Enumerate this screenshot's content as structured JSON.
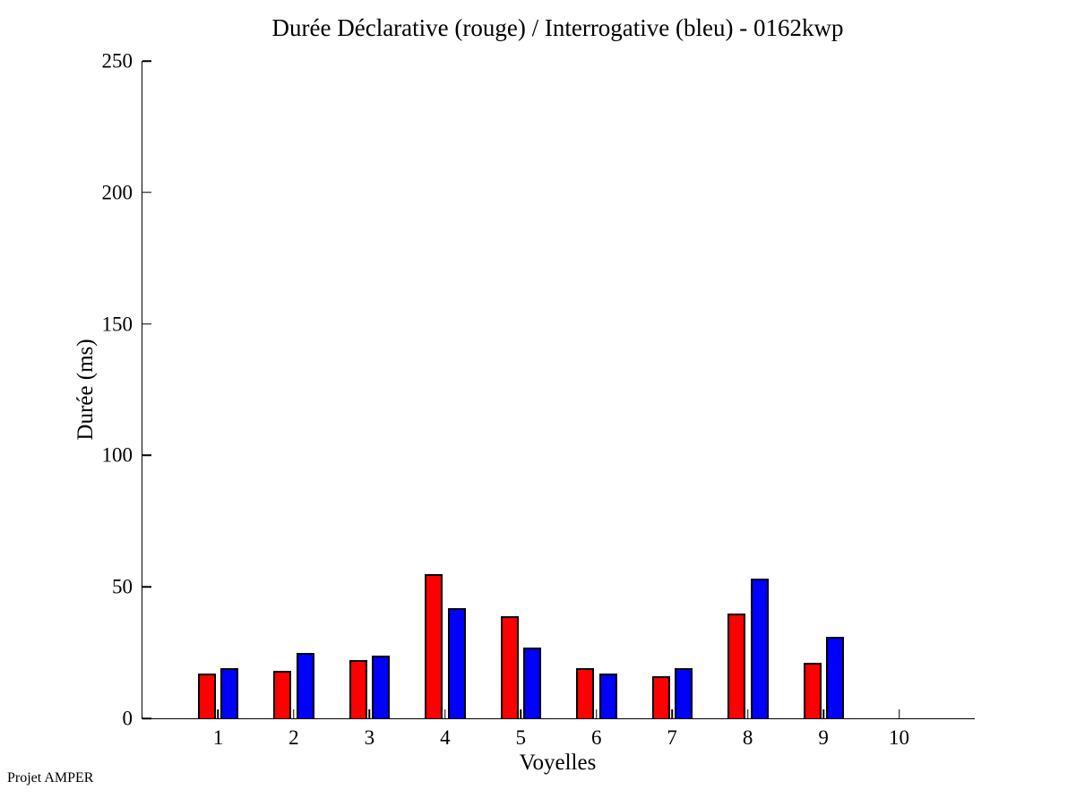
{
  "figure": {
    "footer": "Projet AMPER"
  },
  "chart_data": {
    "type": "bar",
    "title": "Durée Déclarative (rouge) / Interrogative (bleu) - 0162kwp",
    "xlabel": "Voyelles",
    "ylabel": "Durée (ms)",
    "categories": [
      1,
      2,
      3,
      4,
      5,
      6,
      7,
      8,
      9,
      10
    ],
    "series": [
      {
        "name": "Déclarative (rouge)",
        "color": "#ff0000",
        "values": [
          17,
          18,
          22,
          55,
          39,
          19,
          16,
          40,
          21,
          0
        ]
      },
      {
        "name": "Interrogative (bleu)",
        "color": "#0000ff",
        "values": [
          19,
          25,
          24,
          42,
          27,
          17,
          19,
          53,
          31,
          0
        ]
      }
    ],
    "ylim": [
      0,
      250
    ],
    "yticks": [
      0,
      50,
      100,
      150,
      200,
      250
    ],
    "xticks": [
      1,
      2,
      3,
      4,
      5,
      6,
      7,
      8,
      9,
      10
    ],
    "xlim": [
      0,
      11
    ],
    "grid": false,
    "legend": "none"
  }
}
